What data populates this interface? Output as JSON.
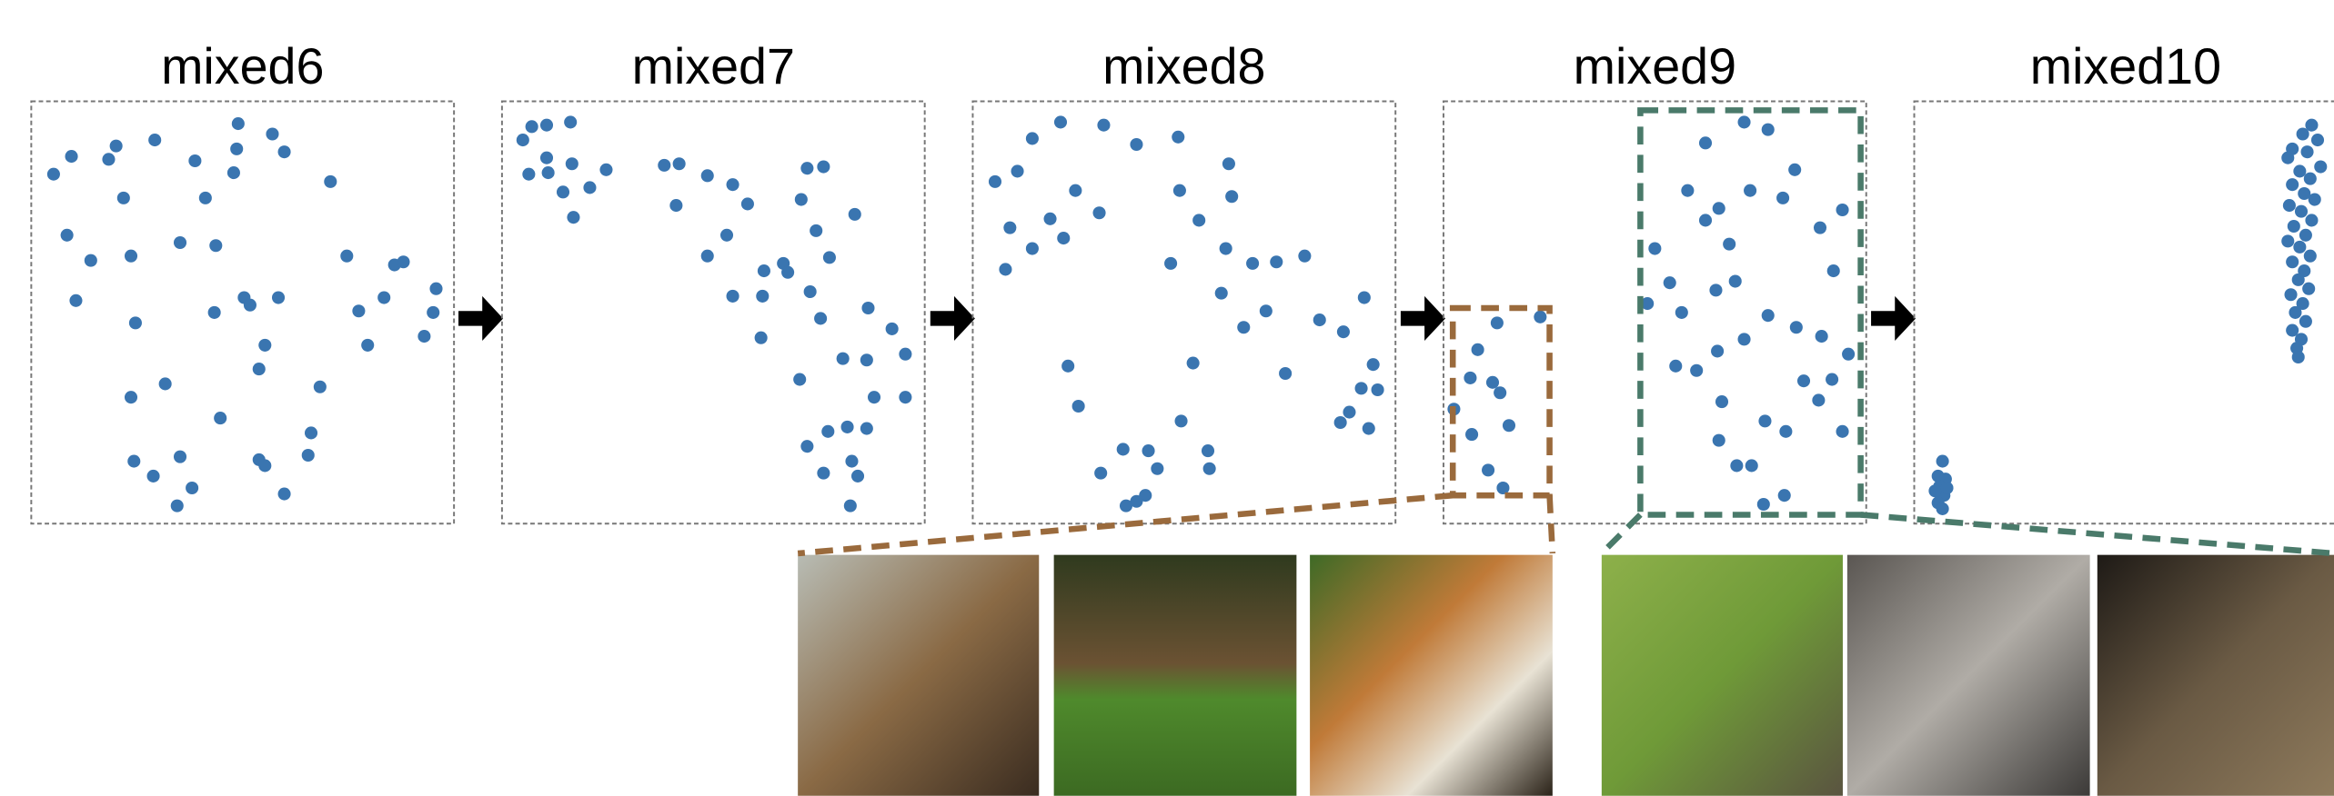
{
  "chart_data": [
    {
      "type": "scatter",
      "title": "mixed6",
      "color": "#3a75b0",
      "xlim": [
        0,
        284
      ],
      "ylim": [
        0,
        284
      ],
      "x": [
        15,
        27,
        52,
        57,
        83,
        110,
        139,
        138,
        162,
        170,
        136,
        117,
        62,
        201,
        24,
        40,
        30,
        67,
        100,
        124,
        70,
        123,
        143,
        147,
        166,
        157,
        153,
        212,
        244,
        250,
        220,
        237,
        272,
        270,
        264,
        226,
        194,
        90,
        67,
        127,
        188,
        186,
        69,
        82,
        100,
        108,
        98,
        153,
        157,
        170
      ],
      "y": [
        235,
        247,
        245,
        254,
        258,
        244,
        269,
        252,
        262,
        250,
        236,
        219,
        219,
        230,
        194,
        177,
        150,
        180,
        189,
        187,
        135,
        142,
        152,
        147,
        152,
        120,
        104,
        180,
        174,
        176,
        143,
        152,
        158,
        142,
        126,
        120,
        92,
        94,
        85,
        71,
        61,
        46,
        42,
        32,
        45,
        24,
        12,
        43,
        39,
        20
      ]
    },
    {
      "type": "scatter",
      "title": "mixed7",
      "color": "#3a75b0",
      "xlim": [
        0,
        284
      ],
      "ylim": [
        0,
        284
      ],
      "x": [
        14,
        20,
        30,
        46,
        18,
        30,
        31,
        47,
        41,
        48,
        59,
        70,
        109,
        119,
        117,
        138,
        155,
        151,
        165,
        138,
        176,
        189,
        155,
        175,
        174,
        192,
        205,
        216,
        201,
        211,
        237,
        220,
        207,
        214,
        246,
        262,
        229,
        245,
        271,
        200,
        250,
        271,
        219,
        232,
        205,
        216,
        235,
        245,
        239,
        234
      ],
      "y": [
        258,
        267,
        268,
        270,
        235,
        246,
        236,
        242,
        223,
        206,
        226,
        238,
        241,
        242,
        214,
        234,
        228,
        194,
        215,
        180,
        170,
        175,
        153,
        153,
        125,
        169,
        239,
        240,
        218,
        197,
        208,
        179,
        156,
        138,
        145,
        131,
        111,
        110,
        114,
        97,
        85,
        85,
        62,
        65,
        52,
        34,
        42,
        64,
        32,
        12
      ]
    },
    {
      "type": "scatter",
      "title": "mixed8",
      "color": "#3a75b0",
      "xlim": [
        0,
        284
      ],
      "ylim": [
        0,
        284
      ],
      "x": [
        15,
        30,
        40,
        59,
        88,
        110,
        138,
        172,
        174,
        139,
        69,
        85,
        52,
        61,
        40,
        25,
        22,
        152,
        170,
        133,
        188,
        204,
        223,
        167,
        182,
        197,
        210,
        233,
        249,
        263,
        269,
        261,
        272,
        253,
        247,
        266,
        64,
        71,
        148,
        140,
        101,
        118,
        86,
        124,
        158,
        159,
        116,
        110,
        103
      ],
      "y": [
        230,
        237,
        259,
        270,
        268,
        255,
        260,
        242,
        220,
        224,
        224,
        209,
        205,
        192,
        185,
        199,
        171,
        204,
        185,
        175,
        175,
        176,
        180,
        155,
        132,
        143,
        101,
        137,
        129,
        152,
        107,
        91,
        90,
        75,
        68,
        64,
        106,
        79,
        108,
        69,
        50,
        49,
        34,
        37,
        49,
        37,
        19,
        15,
        12
      ]
    },
    {
      "type": "scatter",
      "title": "mixed9",
      "color": "#3a75b0",
      "xlim": [
        0,
        284
      ],
      "ylim": [
        0,
        284
      ],
      "x": [
        36,
        65,
        23,
        18,
        7,
        33,
        38,
        44,
        19,
        30,
        40,
        176,
        202,
        218,
        236,
        164,
        185,
        176,
        206,
        228,
        192,
        253,
        268,
        262,
        142,
        152,
        137,
        160,
        183,
        196,
        218,
        237,
        254,
        272,
        202,
        184,
        156,
        170,
        187,
        216,
        242,
        261,
        252,
        230,
        268,
        185,
        197,
        207,
        229,
        215
      ],
      "y": [
        135,
        139,
        117,
        98,
        77,
        95,
        88,
        66,
        60,
        36,
        24,
        256,
        270,
        265,
        238,
        224,
        212,
        204,
        224,
        219,
        188,
        199,
        211,
        170,
        185,
        162,
        148,
        142,
        157,
        163,
        140,
        132,
        126,
        114,
        124,
        116,
        106,
        103,
        82,
        69,
        96,
        97,
        83,
        62,
        62,
        56,
        39,
        39,
        19,
        13
      ]
    },
    {
      "type": "scatter",
      "title": "mixed10",
      "color": "#3a75b0",
      "xlim": [
        0,
        284
      ],
      "ylim": [
        0,
        284
      ],
      "x": [
        19,
        16,
        21,
        17,
        20,
        16,
        19,
        14,
        22,
        267,
        261,
        271,
        254,
        264,
        251,
        273,
        259,
        266,
        254,
        262,
        269,
        252,
        260,
        267,
        255,
        263,
        251,
        259,
        266,
        254,
        262,
        258,
        265,
        253,
        261,
        256,
        263,
        254,
        260,
        257,
        258
      ],
      "y": [
        42,
        32,
        30,
        25,
        19,
        14,
        10,
        22,
        24,
        268,
        262,
        258,
        252,
        250,
        246,
        240,
        237,
        232,
        228,
        222,
        218,
        214,
        210,
        204,
        200,
        194,
        190,
        186,
        180,
        176,
        170,
        164,
        158,
        154,
        148,
        142,
        136,
        130,
        124,
        118,
        112
      ]
    }
  ]
}
